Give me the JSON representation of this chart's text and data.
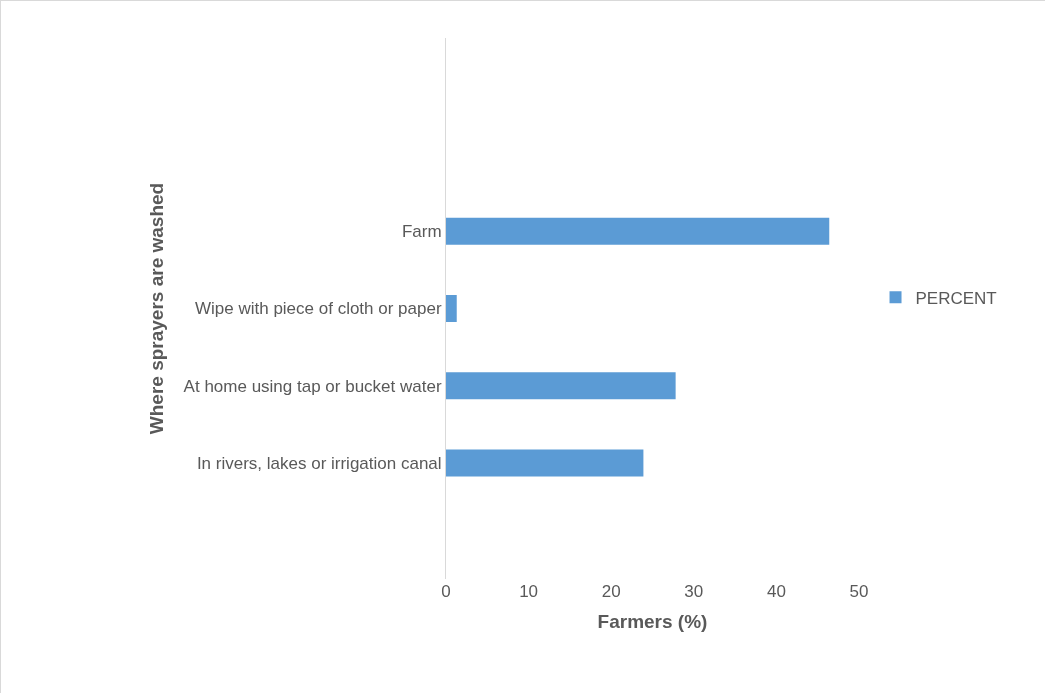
{
  "chart_data": {
    "type": "bar",
    "orientation": "horizontal",
    "xlabel": "Farmers (%)",
    "ylabel": "Where sprayers are washed",
    "categories": [
      "Farm",
      "Wipe with piece of cloth or paper",
      "At home using tap or bucket water",
      "In rivers, lakes or irrigation canal"
    ],
    "series": [
      {
        "name": "PERCENT",
        "color": "#5b9bd5",
        "values": [
          46.4,
          1.3,
          27.8,
          23.9
        ]
      }
    ],
    "xlim": [
      0,
      50
    ],
    "xticks": [
      0,
      10,
      20,
      30,
      40,
      50
    ],
    "grid": false,
    "legend": "right"
  }
}
